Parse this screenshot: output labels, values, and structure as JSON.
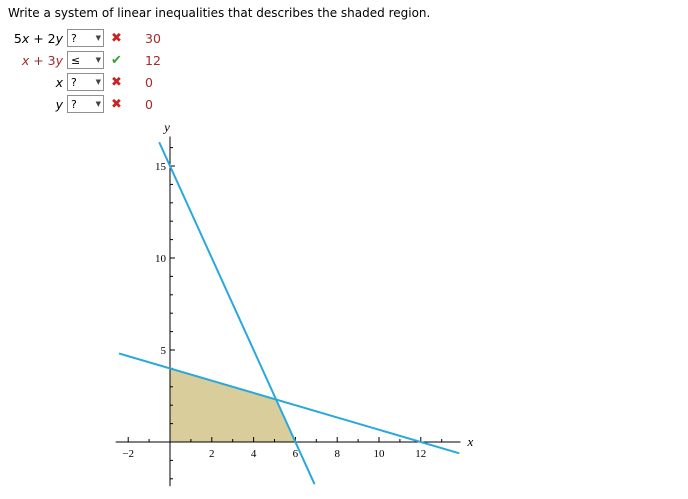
{
  "title": "Write a system of linear inequalities that describes the shaded region.",
  "rows": [
    {
      "lhs": "5x + 2y",
      "selected": "?",
      "mark": "incorrect",
      "rhs": "30",
      "lhs_color": "#000000"
    },
    {
      "lhs": "x + 3y",
      "selected": "≤",
      "mark": "correct",
      "rhs": "12",
      "lhs_color": "#a52a2a"
    },
    {
      "lhs": "x",
      "selected": "?",
      "mark": "incorrect",
      "rhs": "0",
      "lhs_color": "#000000"
    },
    {
      "lhs": "y",
      "selected": "?",
      "mark": "incorrect",
      "rhs": "0",
      "lhs_color": "#000000"
    }
  ],
  "icons": {
    "dropdown_arrow": "▼",
    "correct": "✔",
    "incorrect": "✖"
  },
  "colors": {
    "answer_red": "#a52a2a",
    "mark_red": "#cc2222",
    "mark_green": "#33a033",
    "line_cyan": "#29a8dc",
    "region_fill": "#d9cd9b"
  },
  "chart_data": {
    "type": "line",
    "title": "",
    "xlabel": "x",
    "ylabel": "y",
    "xlim": [
      -2.6,
      13.9
    ],
    "ylim": [
      -2.4,
      16.6
    ],
    "x_tick_labels": [
      -2,
      2,
      4,
      6,
      8,
      10,
      12
    ],
    "y_tick_labels": [
      5,
      10,
      15
    ],
    "grid": false,
    "lines": [
      {
        "name": "5x + 2y = 30",
        "from": [
          -0.5,
          16.25
        ],
        "to": [
          6.9,
          -2.25
        ]
      },
      {
        "name": "x + 3y = 12",
        "from": [
          -2.4,
          4.8
        ],
        "to": [
          13.8,
          -0.6
        ]
      }
    ],
    "shaded_region": {
      "vertices": [
        [
          0,
          0
        ],
        [
          0,
          4
        ],
        [
          5.08,
          2.31
        ],
        [
          6,
          0
        ]
      ],
      "fill": "#d9cd9b"
    },
    "line_color": "#29a8dc"
  }
}
